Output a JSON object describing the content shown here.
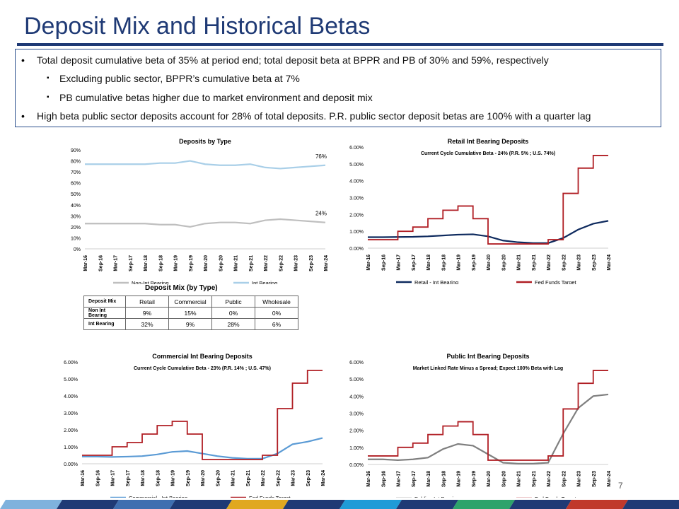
{
  "page": {
    "title": "Deposit Mix and Historical Betas",
    "page_number": "7"
  },
  "bullets": [
    {
      "level": 1,
      "text": "Total deposit cumulative beta of 35% at period end; total deposit beta at BPPR and PB of 30% and 59%, respectively"
    },
    {
      "level": 2,
      "text": "Excluding public sector, BPPR’s cumulative beta at 7%"
    },
    {
      "level": 2,
      "text": "PB cumulative betas higher due to market environment and deposit mix"
    },
    {
      "level": 1,
      "text": "High beta public sector deposits account for 28% of total deposits. P.R. public sector deposit betas are 100% with a quarter lag"
    }
  ],
  "mix_table": {
    "title": "Deposit Mix (by Type)",
    "headers": [
      "Deposit Mix",
      "Retail",
      "Commercial",
      "Public",
      "Wholesale"
    ],
    "rows": [
      {
        "label": "Non Int Bearing",
        "values": [
          "9%",
          "15%",
          "0%",
          "0%"
        ]
      },
      {
        "label": "Int Bearing",
        "values": [
          "32%",
          "9%",
          "28%",
          "6%"
        ]
      }
    ]
  },
  "chart_data": [
    {
      "type": "line",
      "title": "Deposits by Type",
      "subtitle": "",
      "categories": [
        "Mar-16",
        "Sep-16",
        "Mar-17",
        "Sep-17",
        "Mar-18",
        "Sep-18",
        "Mar-19",
        "Sep-19",
        "Mar-20",
        "Sep-20",
        "Mar-21",
        "Sep-21",
        "Mar-22",
        "Sep-22",
        "Mar-23",
        "Sep-23",
        "Mar-24"
      ],
      "y_ticks": [
        "0%",
        "10%",
        "20%",
        "30%",
        "40%",
        "50%",
        "60%",
        "70%",
        "80%",
        "90%"
      ],
      "ylim": [
        0,
        90
      ],
      "series": [
        {
          "name": "Non-Int Bearing",
          "color": "#bfbfbf",
          "values": [
            23,
            23,
            23,
            23,
            23,
            22,
            22,
            20,
            23,
            24,
            24,
            23,
            26,
            27,
            26,
            25,
            24
          ]
        },
        {
          "name": "Int Bearing",
          "color": "#a9cfe8",
          "values": [
            77,
            77,
            77,
            77,
            77,
            78,
            78,
            80,
            77,
            76,
            76,
            77,
            74,
            73,
            74,
            75,
            76
          ]
        }
      ],
      "annotations": [
        "76%",
        "24%"
      ],
      "legend": "bottom"
    },
    {
      "type": "line",
      "title": "Retail Int Bearing Deposits",
      "subtitle": "Current Cycle Cumulative Beta - 24% (P.R. 5% ; U.S. 74%)",
      "categories": [
        "Mar-16",
        "Sep-16",
        "Mar-17",
        "Sep-17",
        "Mar-18",
        "Sep-18",
        "Mar-19",
        "Sep-19",
        "Mar-20",
        "Sep-20",
        "Mar-21",
        "Sep-21",
        "Mar-22",
        "Sep-22",
        "Mar-23",
        "Sep-23",
        "Mar-24"
      ],
      "y_ticks": [
        "0.00%",
        "1.00%",
        "2.00%",
        "3.00%",
        "4.00%",
        "5.00%",
        "6.00%"
      ],
      "ylim": [
        0,
        6
      ],
      "series": [
        {
          "name": "Retail - Int Bearing",
          "color": "#0e2a5e",
          "values": [
            0.65,
            0.65,
            0.66,
            0.67,
            0.7,
            0.75,
            0.8,
            0.82,
            0.7,
            0.45,
            0.35,
            0.3,
            0.3,
            0.6,
            1.1,
            1.45,
            1.62
          ]
        },
        {
          "name": "Fed Funds Target",
          "color": "#b01e24",
          "values": [
            0.5,
            0.5,
            1.0,
            1.25,
            1.75,
            2.25,
            2.5,
            1.75,
            0.25,
            0.25,
            0.25,
            0.25,
            0.5,
            3.25,
            4.75,
            5.5,
            5.5
          ]
        }
      ],
      "legend": "bottom"
    },
    {
      "type": "line",
      "title": "Commercial Int Bearing Deposits",
      "subtitle": "Current Cycle Cumulative Beta - 23% (P.R. 14% ; U.S. 47%)",
      "categories": [
        "Mar-16",
        "Sep-16",
        "Mar-17",
        "Sep-17",
        "Mar-18",
        "Sep-18",
        "Mar-19",
        "Sep-19",
        "Mar-20",
        "Sep-20",
        "Mar-21",
        "Sep-21",
        "Mar-22",
        "Sep-22",
        "Mar-23",
        "Sep-23",
        "Mar-24"
      ],
      "y_ticks": [
        "0.00%",
        "1.00%",
        "2.00%",
        "3.00%",
        "4.00%",
        "5.00%",
        "6.00%"
      ],
      "ylim": [
        0,
        6
      ],
      "series": [
        {
          "name": "Commercial - Int Bearing",
          "color": "#5b9bd5",
          "values": [
            0.42,
            0.42,
            0.4,
            0.42,
            0.45,
            0.55,
            0.7,
            0.75,
            0.6,
            0.45,
            0.35,
            0.3,
            0.3,
            0.6,
            1.15,
            1.3,
            1.52
          ]
        },
        {
          "name": "Fed Funds Target",
          "color": "#b01e24",
          "values": [
            0.5,
            0.5,
            1.0,
            1.25,
            1.75,
            2.25,
            2.5,
            1.75,
            0.25,
            0.25,
            0.25,
            0.25,
            0.5,
            3.25,
            4.75,
            5.5,
            5.5
          ]
        }
      ],
      "legend": "bottom"
    },
    {
      "type": "line",
      "title": "Public Int Bearing Deposits",
      "subtitle": "Market Linked Rate Minus a Spread; Expect 100% Beta with Lag",
      "categories": [
        "Mar-16",
        "Sep-16",
        "Mar-17",
        "Sep-17",
        "Mar-18",
        "Sep-18",
        "Mar-19",
        "Sep-19",
        "Mar-20",
        "Sep-20",
        "Mar-21",
        "Sep-21",
        "Mar-22",
        "Sep-22",
        "Mar-23",
        "Sep-23",
        "Mar-24"
      ],
      "y_ticks": [
        "0.00%",
        "1.00%",
        "2.00%",
        "3.00%",
        "4.00%",
        "5.00%",
        "6.00%"
      ],
      "ylim": [
        0,
        6
      ],
      "series": [
        {
          "name": "Public - Int Bearing",
          "color": "#7f7f7f",
          "values": [
            0.3,
            0.3,
            0.25,
            0.3,
            0.4,
            0.9,
            1.2,
            1.1,
            0.6,
            0.1,
            0.05,
            0.05,
            0.1,
            1.8,
            3.3,
            4.0,
            4.1
          ]
        },
        {
          "name": "Fed Funds Target",
          "color": "#b01e24",
          "values": [
            0.5,
            0.5,
            1.0,
            1.25,
            1.75,
            2.25,
            2.5,
            1.75,
            0.25,
            0.25,
            0.25,
            0.25,
            0.5,
            3.25,
            4.75,
            5.5,
            5.5
          ]
        }
      ],
      "legend": "bottom"
    }
  ],
  "footer_colors": [
    "#7fb2dd",
    "#1f3a75",
    "#3f6fb0",
    "#1f3a75",
    "#e0a820",
    "#1f3a75",
    "#1f9bd7",
    "#1f3a75",
    "#2ea36b",
    "#1f3a75",
    "#c0392b",
    "#1f3a75"
  ]
}
